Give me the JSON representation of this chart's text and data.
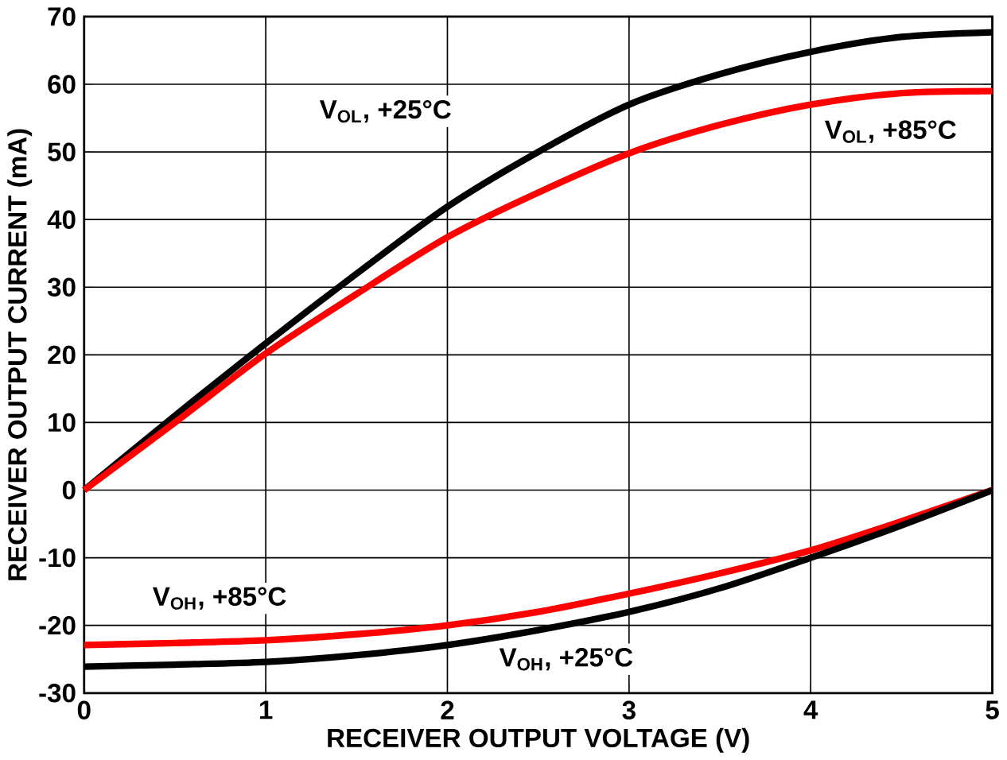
{
  "chart_data": {
    "type": "line",
    "xlabel": "RECEIVER OUTPUT VOLTAGE (V)",
    "ylabel": "RECEIVER OUTPUT CURRENT (mA)",
    "x": [
      0,
      0.5,
      1,
      1.5,
      2,
      2.5,
      3,
      3.5,
      4,
      4.5,
      5
    ],
    "series": [
      {
        "name": "V$_{OL}$, +25°C",
        "color": "#000000",
        "values": [
          0,
          11,
          21.7,
          32,
          41.9,
          50,
          57,
          61.5,
          64.8,
          67,
          67.7
        ]
      },
      {
        "name": "V$_{OL}$, +85°C",
        "color": "#ff0000",
        "values": [
          0,
          10,
          20.2,
          29,
          37.4,
          44,
          49.8,
          54,
          57,
          58.7,
          59
        ]
      },
      {
        "name": "V$_{OH}$, +85°C",
        "color": "#ff0000",
        "values": [
          -22.9,
          -22.6,
          -22.2,
          -21.3,
          -20,
          -18,
          -15.3,
          -12.3,
          -8.9,
          -4.6,
          0
        ]
      },
      {
        "name": "V$_{OH}$, +25°C",
        "color": "#000000",
        "values": [
          -26.1,
          -25.8,
          -25.4,
          -24.4,
          -22.9,
          -20.7,
          -18,
          -14.5,
          -10,
          -5.2,
          0
        ]
      }
    ],
    "xlim": [
      0,
      5
    ],
    "ylim": [
      -30,
      70
    ],
    "xticks": [
      0,
      1,
      2,
      3,
      4,
      5
    ],
    "yticks": [
      -30,
      -20,
      -10,
      0,
      10,
      20,
      30,
      40,
      50,
      60,
      70
    ],
    "grid": true,
    "marker": "none",
    "line_style": "solid"
  }
}
